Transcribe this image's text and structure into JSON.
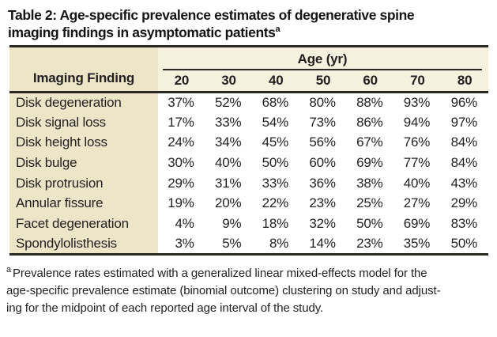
{
  "title": {
    "line1": "Table 2: Age-specific prevalence estimates of degenerative spine",
    "line2": "imaging findings in asymptomatic patients",
    "superscript": "a"
  },
  "table": {
    "corner_header": "Imaging Finding",
    "age_group_header": "Age (yr)",
    "age_columns": [
      "20",
      "30",
      "40",
      "50",
      "60",
      "70",
      "80"
    ],
    "rows": [
      {
        "label": "Disk degeneration",
        "values": [
          "37%",
          "52%",
          "68%",
          "80%",
          "88%",
          "93%",
          "96%"
        ]
      },
      {
        "label": "Disk signal loss",
        "values": [
          "17%",
          "33%",
          "54%",
          "73%",
          "86%",
          "94%",
          "97%"
        ]
      },
      {
        "label": "Disk height loss",
        "values": [
          "24%",
          "34%",
          "45%",
          "56%",
          "67%",
          "76%",
          "84%"
        ]
      },
      {
        "label": "Disk bulge",
        "values": [
          "30%",
          "40%",
          "50%",
          "60%",
          "69%",
          "77%",
          "84%"
        ]
      },
      {
        "label": "Disk protrusion",
        "values": [
          "29%",
          "31%",
          "33%",
          "36%",
          "38%",
          "40%",
          "43%"
        ]
      },
      {
        "label": "Annular fissure",
        "values": [
          "19%",
          "20%",
          "22%",
          "23%",
          "25%",
          "27%",
          "29%"
        ]
      },
      {
        "label": "Facet degeneration",
        "values": [
          "4%",
          "9%",
          "18%",
          "32%",
          "50%",
          "69%",
          "83%"
        ]
      },
      {
        "label": "Spondylolisthesis",
        "values": [
          "3%",
          "5%",
          "8%",
          "14%",
          "23%",
          "35%",
          "50%"
        ]
      }
    ]
  },
  "footnote": {
    "marker": "a",
    "lines": [
      "Prevalence rates estimated with a generalized linear mixed-effects model for the",
      "age-specific prevalence estimate (binomial outcome) clustering on study and adjust-",
      "ing for the midpoint of each reported age interval of the study."
    ]
  },
  "colors": {
    "background": "#ffffff",
    "left_column_bg": "#ece5c7",
    "header_band_bg": "#f6f1df",
    "rule": "#2b2824",
    "text": "#231f20"
  }
}
